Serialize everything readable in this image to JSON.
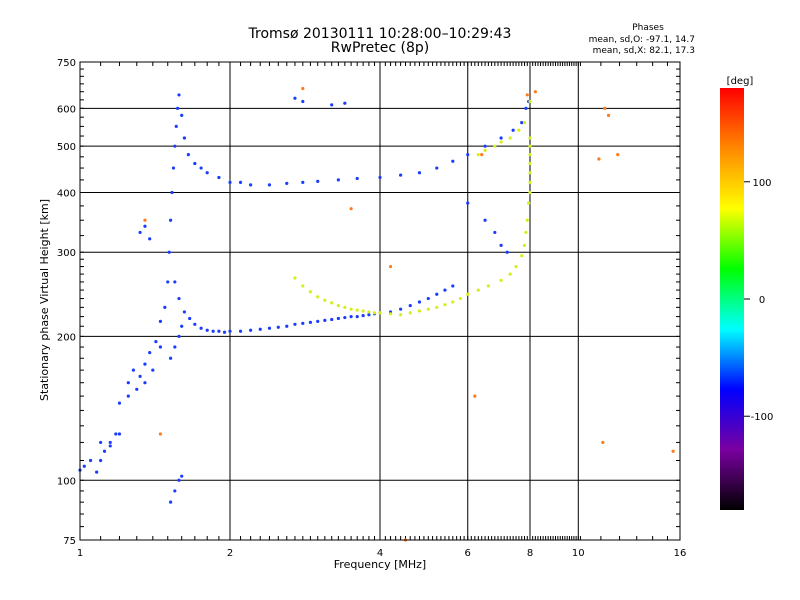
{
  "chart_data": {
    "type": "scatter",
    "title": "Tromsø 20130111 10:28:00–10:29:43",
    "subtitle": "RwPretec (8p)",
    "xlabel": "Frequency [MHz]",
    "ylabel": "Stationary phase Virtual Height [km]",
    "x_scale": "log",
    "y_scale": "log",
    "xlim": [
      1,
      16
    ],
    "ylim": [
      75,
      750
    ],
    "x_ticks": [
      1,
      2,
      4,
      6,
      8,
      10,
      16
    ],
    "y_ticks": [
      75,
      100,
      200,
      300,
      400,
      500,
      600,
      750
    ],
    "grid": true,
    "legend": {
      "title": "Phases",
      "line1": "mean, sd,O: -97.1, 14.7",
      "line2": "mean, sd,X: 82.1, 17.3",
      "placement": "top-right"
    },
    "colorbar": {
      "label": "[deg]",
      "range": [
        -180,
        180
      ],
      "ticks": [
        100,
        0,
        -100
      ],
      "colors": [
        "#ff0000",
        "#ff8800",
        "#ffff00",
        "#00ff00",
        "#00ffff",
        "#0000ff",
        "#7a00a0",
        "#000000"
      ]
    },
    "series": [
      {
        "color": "#1a3cff",
        "x": [
          1.0,
          1.02,
          1.05,
          1.08,
          1.1,
          1.15,
          1.2,
          1.25,
          1.28,
          1.32,
          1.35,
          1.38,
          1.42,
          1.45,
          1.48,
          1.5,
          1.51,
          1.52,
          1.53,
          1.54,
          1.55,
          1.56,
          1.57,
          1.58,
          1.6,
          1.62,
          1.65,
          1.7,
          1.75,
          1.8,
          1.9,
          2.0,
          2.1,
          2.2,
          2.4,
          2.6,
          2.8,
          3.0,
          3.3,
          3.6,
          4.0,
          4.4,
          4.8,
          5.2,
          5.6,
          6.0,
          6.5,
          7.0,
          7.4,
          7.7,
          7.85,
          7.95,
          1.55,
          1.58,
          1.62,
          1.66,
          1.7,
          1.75,
          1.8,
          1.85,
          1.9,
          1.95,
          2.0,
          2.1,
          2.2,
          2.3,
          2.4,
          2.5,
          2.6,
          2.7,
          2.8,
          2.9,
          3.0,
          3.1,
          3.2,
          3.3,
          3.4,
          3.5,
          3.6,
          3.7,
          3.8,
          3.9,
          4.0,
          4.2,
          4.4,
          4.6,
          4.8,
          5.0,
          5.2,
          5.4,
          5.6,
          1.2,
          1.25,
          1.3,
          1.35,
          1.4,
          1.45,
          1.1,
          1.12,
          1.15,
          1.18,
          1.32,
          1.35,
          1.38,
          2.7,
          2.8,
          3.2,
          3.4,
          6.0,
          6.5,
          6.8,
          7.0,
          7.2,
          1.52,
          1.55,
          1.58,
          1.6,
          1.52,
          1.55,
          1.58,
          1.6
        ],
        "y": [
          105,
          107,
          110,
          104,
          120,
          118,
          125,
          160,
          170,
          165,
          175,
          185,
          195,
          215,
          230,
          260,
          300,
          350,
          400,
          450,
          500,
          550,
          600,
          640,
          580,
          520,
          480,
          460,
          450,
          440,
          430,
          420,
          420,
          415,
          415,
          418,
          420,
          422,
          425,
          428,
          430,
          435,
          440,
          450,
          465,
          480,
          500,
          520,
          540,
          560,
          600,
          620,
          260,
          240,
          225,
          218,
          212,
          208,
          206,
          205,
          205,
          204,
          205,
          205,
          206,
          207,
          208,
          209,
          210,
          212,
          213,
          214,
          215,
          216,
          217,
          218,
          219,
          220,
          220,
          221,
          222,
          223,
          224,
          225,
          228,
          232,
          236,
          240,
          245,
          250,
          255,
          145,
          150,
          155,
          160,
          170,
          190,
          110,
          115,
          120,
          125,
          330,
          340,
          320,
          630,
          620,
          610,
          615,
          380,
          350,
          330,
          310,
          300,
          90,
          95,
          100,
          102,
          180,
          190,
          200,
          210
        ]
      },
      {
        "color": "#d7ee1a",
        "x": [
          2.7,
          2.8,
          2.9,
          3.0,
          3.1,
          3.2,
          3.3,
          3.4,
          3.5,
          3.6,
          3.7,
          3.8,
          3.9,
          4.0,
          4.2,
          4.4,
          4.6,
          4.8,
          5.0,
          5.2,
          5.4,
          5.6,
          5.8,
          6.0,
          6.3,
          6.6,
          7.0,
          7.3,
          7.5,
          7.7,
          7.8,
          7.85,
          7.9,
          7.95,
          8.0,
          8.0,
          8.0,
          8.0,
          8.0,
          8.0,
          8.0,
          6.3,
          6.5,
          6.8,
          7.0,
          7.3,
          7.6,
          7.8,
          8.0
        ],
        "y": [
          265,
          255,
          248,
          242,
          238,
          235,
          232,
          230,
          228,
          227,
          226,
          225,
          224,
          224,
          223,
          222,
          224,
          226,
          228,
          230,
          233,
          236,
          240,
          245,
          250,
          255,
          262,
          270,
          280,
          295,
          310,
          330,
          350,
          380,
          400,
          420,
          440,
          460,
          480,
          500,
          520,
          480,
          490,
          500,
          510,
          520,
          540,
          560,
          620
        ]
      },
      {
        "color": "#ff7a1a",
        "x": [
          1.35,
          1.45,
          2.8,
          3.5,
          4.2,
          4.5,
          6.2,
          6.4,
          7.9,
          8.2,
          11.0,
          11.2,
          12.0,
          15.5,
          11.5,
          11.3
        ],
        "y": [
          350,
          125,
          660,
          370,
          280,
          75,
          150,
          480,
          640,
          650,
          470,
          120,
          480,
          115,
          580,
          600
        ]
      }
    ]
  }
}
